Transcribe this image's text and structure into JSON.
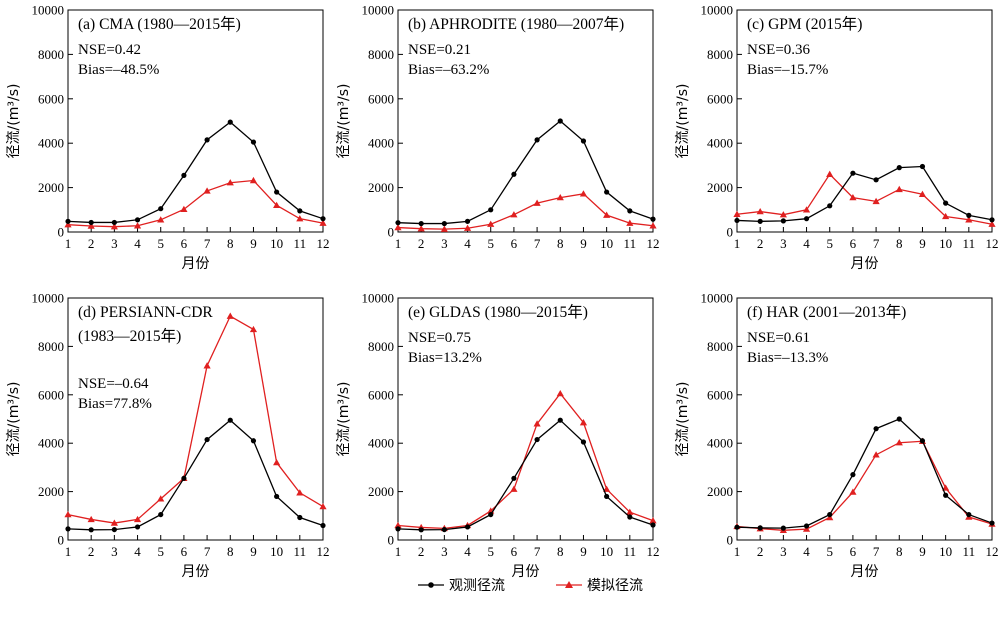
{
  "colors": {
    "observed": "#000000",
    "simulated": "#e02020",
    "axis": "#000000"
  },
  "legend": {
    "observed": "观测径流",
    "simulated": "模拟径流",
    "observed_marker": "circle",
    "simulated_marker": "triangle"
  },
  "chart_data": [
    {
      "type": "line",
      "title_lines": [
        "(a) CMA (1980—2015年)"
      ],
      "nse": "NSE=0.42",
      "bias": "Bias=–48.5%",
      "xlabel": "月份",
      "ylabel": "径流/(m³/s)",
      "xlim": [
        1,
        12
      ],
      "ylim": [
        0,
        10000
      ],
      "yticks": [
        0,
        2000,
        4000,
        6000,
        8000,
        10000
      ],
      "x": [
        1,
        2,
        3,
        4,
        5,
        6,
        7,
        8,
        9,
        10,
        11,
        12
      ],
      "series": [
        {
          "name": "观测径流",
          "values": [
            480,
            430,
            430,
            550,
            1050,
            2550,
            4150,
            4950,
            4050,
            1800,
            950,
            600
          ]
        },
        {
          "name": "模拟径流",
          "values": [
            330,
            270,
            240,
            280,
            550,
            1020,
            1850,
            2220,
            2320,
            1200,
            600,
            400
          ]
        }
      ]
    },
    {
      "type": "line",
      "title_lines": [
        "(b) APHRODITE (1980—2007年)"
      ],
      "nse": "NSE=0.21",
      "bias": "Bias=–63.2%",
      "xlabel": "",
      "ylabel": "径流/(m³/s)",
      "xlim": [
        1,
        12
      ],
      "ylim": [
        0,
        10000
      ],
      "yticks": [
        0,
        2000,
        4000,
        6000,
        8000,
        10000
      ],
      "x": [
        1,
        2,
        3,
        4,
        5,
        6,
        7,
        8,
        9,
        10,
        11,
        12
      ],
      "series": [
        {
          "name": "观测径流",
          "values": [
            420,
            380,
            380,
            480,
            1000,
            2600,
            4150,
            5000,
            4100,
            1800,
            950,
            580
          ]
        },
        {
          "name": "模拟径流",
          "values": [
            200,
            150,
            130,
            170,
            350,
            780,
            1300,
            1550,
            1720,
            760,
            400,
            280
          ]
        }
      ]
    },
    {
      "type": "line",
      "title_lines": [
        "(c) GPM (2015年)"
      ],
      "nse": "NSE=0.36",
      "bias": "Bias=–15.7%",
      "xlabel": "月份",
      "ylabel": "径流/(m³/s)",
      "xlim": [
        1,
        12
      ],
      "ylim": [
        0,
        10000
      ],
      "yticks": [
        0,
        2000,
        4000,
        6000,
        8000,
        10000
      ],
      "x": [
        1,
        2,
        3,
        4,
        5,
        6,
        7,
        8,
        9,
        10,
        11,
        12
      ],
      "series": [
        {
          "name": "观测径流",
          "values": [
            520,
            480,
            500,
            600,
            1180,
            2650,
            2350,
            2900,
            2950,
            1300,
            750,
            550
          ]
        },
        {
          "name": "模拟径流",
          "values": [
            800,
            920,
            780,
            1000,
            2600,
            1550,
            1380,
            1920,
            1700,
            700,
            550,
            350
          ]
        }
      ]
    },
    {
      "type": "line",
      "title_lines": [
        "(d) PERSIANN-CDR",
        "(1983—2015年)"
      ],
      "nse": "NSE=–0.64",
      "bias": "Bias=77.8%",
      "xlabel": "月份",
      "ylabel": "径流/(m³/s)",
      "xlim": [
        1,
        12
      ],
      "ylim": [
        0,
        10000
      ],
      "yticks": [
        0,
        2000,
        4000,
        6000,
        8000,
        10000
      ],
      "x": [
        1,
        2,
        3,
        4,
        5,
        6,
        7,
        8,
        9,
        10,
        11,
        12
      ],
      "series": [
        {
          "name": "观测径流",
          "values": [
            460,
            420,
            430,
            540,
            1050,
            2550,
            4150,
            4950,
            4100,
            1800,
            930,
            600
          ]
        },
        {
          "name": "模拟径流",
          "values": [
            1050,
            850,
            700,
            850,
            1700,
            2550,
            7200,
            9250,
            8700,
            3200,
            1950,
            1380
          ]
        }
      ]
    },
    {
      "type": "line",
      "title_lines": [
        "(e) GLDAS (1980—2015年)"
      ],
      "nse": "NSE=0.75",
      "bias": "Bias=13.2%",
      "xlabel": "月份",
      "ylabel": "径流/(m³/s)",
      "xlim": [
        1,
        12
      ],
      "ylim": [
        0,
        10000
      ],
      "yticks": [
        0,
        2000,
        4000,
        6000,
        8000,
        10000
      ],
      "x": [
        1,
        2,
        3,
        4,
        5,
        6,
        7,
        8,
        9,
        10,
        11,
        12
      ],
      "series": [
        {
          "name": "观测径流",
          "values": [
            460,
            420,
            430,
            540,
            1050,
            2550,
            4150,
            4950,
            4050,
            1800,
            950,
            620
          ]
        },
        {
          "name": "模拟径流",
          "values": [
            600,
            520,
            480,
            600,
            1200,
            2100,
            4800,
            6050,
            4850,
            2100,
            1150,
            800
          ]
        }
      ]
    },
    {
      "type": "line",
      "title_lines": [
        "(f) HAR (2001—2013年)"
      ],
      "nse": "NSE=0.61",
      "bias": "Bias=–13.3%",
      "xlabel": "月份",
      "ylabel": "径流/(m³/s)",
      "xlim": [
        1,
        12
      ],
      "ylim": [
        0,
        10000
      ],
      "yticks": [
        0,
        2000,
        4000,
        6000,
        8000,
        10000
      ],
      "x": [
        1,
        2,
        3,
        4,
        5,
        6,
        7,
        8,
        9,
        10,
        11,
        12
      ],
      "series": [
        {
          "name": "观测径流",
          "values": [
            530,
            500,
            490,
            580,
            1050,
            2700,
            4600,
            5000,
            4100,
            1850,
            1050,
            700
          ]
        },
        {
          "name": "模拟径流",
          "values": [
            560,
            470,
            400,
            450,
            930,
            1980,
            3520,
            4020,
            4080,
            2150,
            950,
            660
          ]
        }
      ]
    }
  ]
}
